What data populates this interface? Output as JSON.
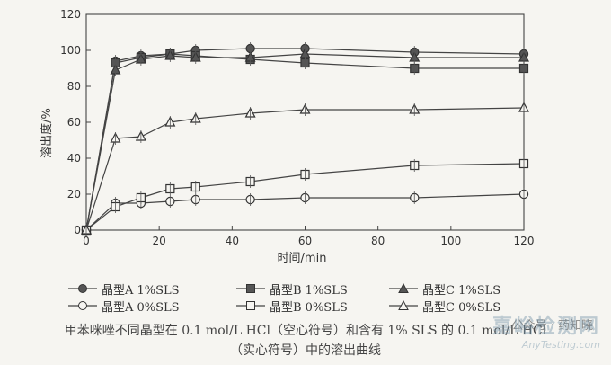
{
  "chart_data": {
    "type": "line",
    "ylabel": "溶出度/%",
    "xlabel": "时间/min",
    "xlim": [
      0,
      120
    ],
    "ylim": [
      0,
      120
    ],
    "xticks": [
      0,
      20,
      40,
      60,
      80,
      100,
      120
    ],
    "yticks": [
      0,
      20,
      40,
      60,
      80,
      100,
      120
    ],
    "grid": false,
    "legend_position": "bottom",
    "series": [
      {
        "name": "晶型A 1%SLS",
        "marker": "filled-circle",
        "x": [
          0,
          8,
          15,
          23,
          30,
          45,
          60,
          90,
          120
        ],
        "y": [
          0,
          94,
          97,
          98,
          100,
          101,
          101,
          99,
          98
        ]
      },
      {
        "name": "晶型B 1%SLS",
        "marker": "filled-square",
        "x": [
          0,
          8,
          15,
          23,
          30,
          45,
          60,
          90,
          120
        ],
        "y": [
          0,
          93,
          96,
          98,
          97,
          95,
          93,
          90,
          90
        ]
      },
      {
        "name": "晶型C 1%SLS",
        "marker": "filled-triangle",
        "x": [
          0,
          8,
          15,
          23,
          30,
          45,
          60,
          90,
          120
        ],
        "y": [
          0,
          89,
          95,
          97,
          96,
          96,
          98,
          96,
          96
        ]
      },
      {
        "name": "晶型A 0%SLS",
        "marker": "open-circle",
        "x": [
          0,
          8,
          15,
          23,
          30,
          45,
          60,
          90,
          120
        ],
        "y": [
          0,
          15,
          15,
          16,
          17,
          17,
          18,
          18,
          20
        ]
      },
      {
        "name": "晶型B 0%SLS",
        "marker": "open-square",
        "x": [
          0,
          8,
          15,
          23,
          30,
          45,
          60,
          90,
          120
        ],
        "y": [
          0,
          13,
          18,
          23,
          24,
          27,
          31,
          36,
          37
        ]
      },
      {
        "name": "晶型C 0%SLS",
        "marker": "open-triangle",
        "x": [
          0,
          8,
          15,
          23,
          30,
          45,
          60,
          90,
          120
        ],
        "y": [
          0,
          51,
          52,
          60,
          62,
          65,
          67,
          67,
          68
        ]
      }
    ]
  },
  "caption": {
    "line1": "甲苯咪唑不同晶型在 0.1 mol/L HCl（空心符号）和含有 1% SLS 的 0.1 mol/L HCl",
    "line2": "（实心符号）中的溶出曲线"
  },
  "watermark": {
    "site_cn": "嘉峪检测网",
    "site_url": "AnyTesting.com",
    "public_account": "公众号 · 药知晓"
  }
}
